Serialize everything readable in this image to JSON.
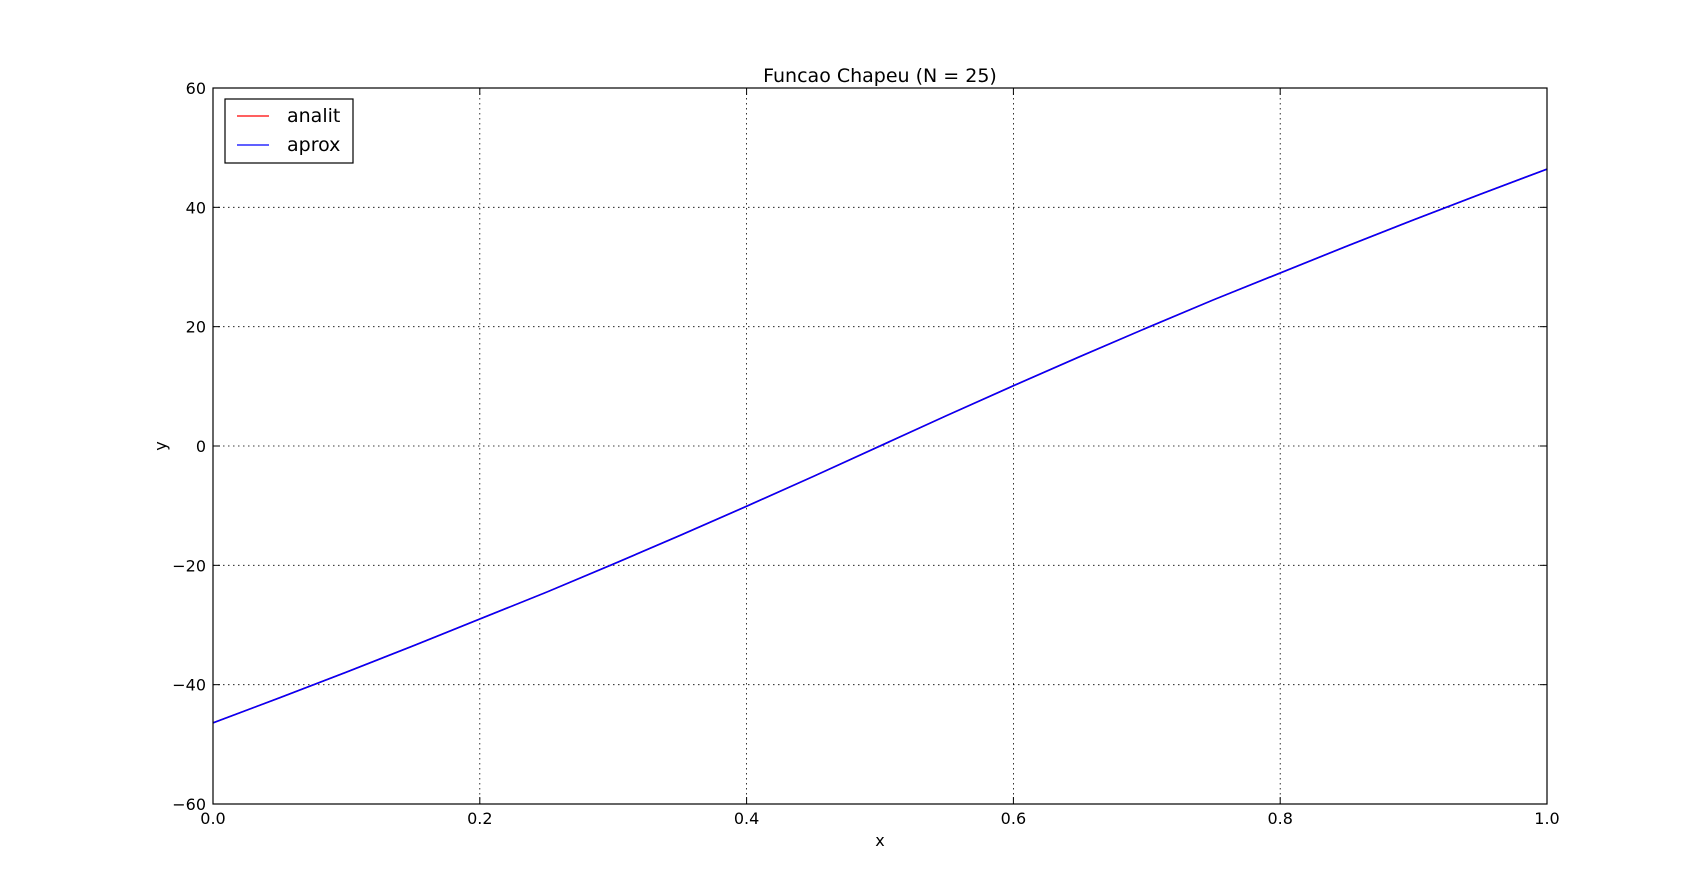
{
  "chart_data": {
    "type": "line",
    "title": "Funcao Chapeu (N = 25)",
    "xlabel": "x",
    "ylabel": "y",
    "xlim": [
      0.0,
      1.0
    ],
    "ylim": [
      -60,
      60
    ],
    "grid": true,
    "legend_placement": "upper-left",
    "x_ticks": [
      "0.0",
      "0.2",
      "0.4",
      "0.6",
      "0.8",
      "1.0"
    ],
    "y_ticks": [
      "−60",
      "−40",
      "−20",
      "0",
      "20",
      "40",
      "60"
    ],
    "x": [
      0.0,
      0.05,
      0.1,
      0.15,
      0.2,
      0.25,
      0.3,
      0.35,
      0.4,
      0.45,
      0.5,
      0.55,
      0.6,
      0.65,
      0.7,
      0.75,
      0.8,
      0.85,
      0.9,
      0.95,
      1.0
    ],
    "series": [
      {
        "name": "analit",
        "color": "#ff0000",
        "values": [
          -46.4,
          -42.2,
          -37.9,
          -33.5,
          -29.0,
          -24.5,
          -19.8,
          -15.0,
          -10.1,
          -5.1,
          0.0,
          5.1,
          10.1,
          15.0,
          19.8,
          24.5,
          29.0,
          33.5,
          37.9,
          42.2,
          46.4
        ]
      },
      {
        "name": "aprox",
        "color": "#0000ff",
        "values": [
          -46.4,
          -42.2,
          -37.9,
          -33.5,
          -29.0,
          -24.5,
          -19.8,
          -15.0,
          -10.1,
          -5.1,
          0.0,
          5.1,
          10.1,
          15.0,
          19.8,
          24.5,
          29.0,
          33.5,
          37.9,
          42.2,
          46.4
        ]
      }
    ]
  }
}
